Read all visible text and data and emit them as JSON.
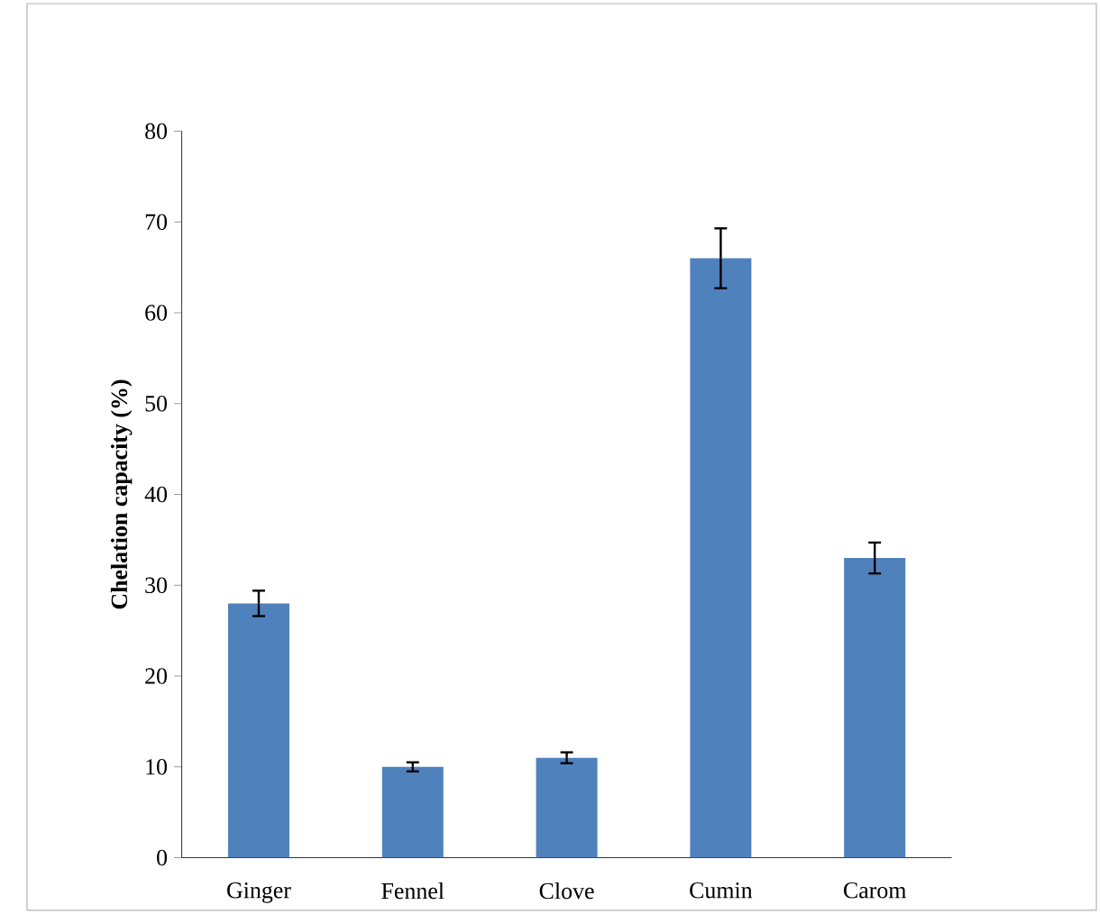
{
  "chart_data": {
    "type": "bar",
    "ylabel": "Chelation  capacity (%)",
    "categories": [
      "Ginger",
      "Fennel",
      "Clove",
      "Cumin",
      "Carom"
    ],
    "values": [
      28,
      10,
      11,
      66,
      33
    ],
    "errors": [
      1.4,
      0.5,
      0.6,
      3.3,
      1.7
    ],
    "color": "#4f81bd",
    "ylim": [
      0,
      80
    ],
    "yticks": [
      0,
      10,
      20,
      30,
      40,
      50,
      60,
      70,
      80
    ]
  }
}
